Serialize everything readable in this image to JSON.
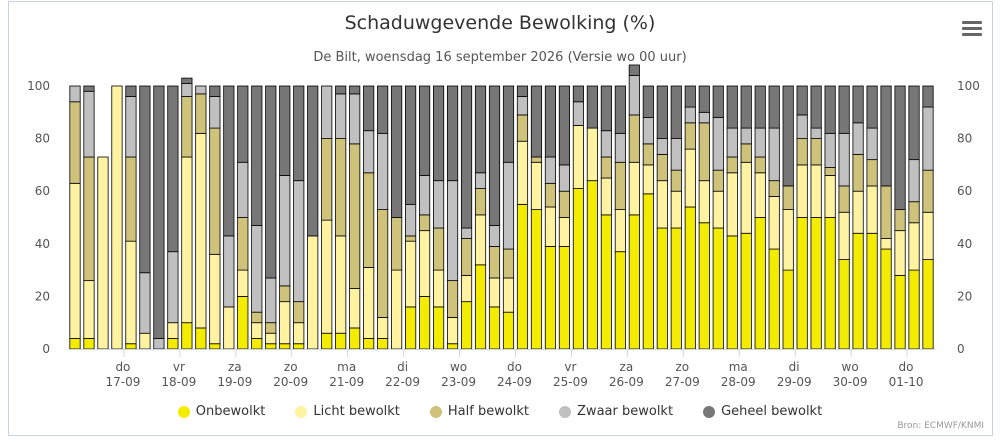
{
  "menu": {
    "icon": "hamburger-menu-icon"
  },
  "credits": "Bron: ECMWF/KNMI",
  "chart_data": {
    "type": "bar",
    "stacked": true,
    "title": "Schaduwgevende Bewolking (%)",
    "subtitle": "De Bilt, woensdag 16 september 2026 (Versie wo 00 uur)",
    "ylim": [
      0,
      100
    ],
    "yticks": [
      0,
      20,
      40,
      60,
      80,
      100
    ],
    "grid": false,
    "legend_position": "bottom",
    "day_labels": [
      {
        "day": "do",
        "date": "17-09",
        "index": 4
      },
      {
        "day": "vr",
        "date": "18-09",
        "index": 8
      },
      {
        "day": "za",
        "date": "19-09",
        "index": 12
      },
      {
        "day": "zo",
        "date": "20-09",
        "index": 16
      },
      {
        "day": "ma",
        "date": "21-09",
        "index": 20
      },
      {
        "day": "di",
        "date": "22-09",
        "index": 24
      },
      {
        "day": "wo",
        "date": "23-09",
        "index": 28
      },
      {
        "day": "do",
        "date": "24-09",
        "index": 32
      },
      {
        "day": "vr",
        "date": "25-09",
        "index": 36
      },
      {
        "day": "za",
        "date": "26-09",
        "index": 40
      },
      {
        "day": "zo",
        "date": "27-09",
        "index": 44
      },
      {
        "day": "ma",
        "date": "28-09",
        "index": 48
      },
      {
        "day": "di",
        "date": "29-09",
        "index": 52
      },
      {
        "day": "wo",
        "date": "30-09",
        "index": 56
      },
      {
        "day": "do",
        "date": "01-10",
        "index": 60
      }
    ],
    "series": [
      {
        "name": "Onbewolkt",
        "color": "#f4ec00",
        "values": [
          4,
          4,
          0,
          0,
          2,
          0,
          0,
          4,
          10,
          8,
          2,
          0,
          20,
          4,
          2,
          2,
          2,
          0,
          6,
          6,
          8,
          4,
          4,
          0,
          16,
          20,
          16,
          2,
          18,
          32,
          16,
          14,
          55,
          53,
          39,
          39,
          61,
          64,
          51,
          37,
          51,
          59,
          46,
          46,
          54,
          48,
          46,
          43,
          44,
          50,
          38,
          30,
          50,
          50,
          50,
          34,
          44,
          44,
          38,
          28,
          30,
          34
        ]
      },
      {
        "name": "Licht bewolkt",
        "color": "#fff2a0",
        "values": [
          59,
          22,
          73,
          100,
          39,
          6,
          0,
          6,
          63,
          74,
          34,
          16,
          10,
          6,
          4,
          16,
          8,
          43,
          43,
          37,
          15,
          27,
          8,
          30,
          25,
          25,
          14,
          10,
          10,
          19,
          11,
          13,
          24,
          18,
          15,
          11,
          24,
          20,
          14,
          16,
          20,
          11,
          18,
          14,
          22,
          16,
          14,
          24,
          27,
          17,
          20,
          23,
          20,
          20,
          16,
          18,
          16,
          18,
          4,
          17,
          18,
          18
        ]
      },
      {
        "name": "Half bewolkt",
        "color": "#cfc27a",
        "values": [
          31,
          47,
          0,
          0,
          32,
          0,
          0,
          0,
          23,
          15,
          48,
          0,
          20,
          4,
          4,
          6,
          8,
          0,
          31,
          37,
          55,
          36,
          41,
          20,
          2,
          6,
          16,
          14,
          14,
          10,
          12,
          11,
          10,
          2,
          9,
          10,
          0,
          0,
          8,
          18,
          18,
          8,
          10,
          8,
          10,
          22,
          8,
          6,
          7,
          6,
          6,
          9,
          10,
          10,
          3,
          10,
          14,
          10,
          20,
          8,
          8,
          16
        ]
      },
      {
        "name": "Zwaar bewolkt",
        "color": "#c0c0c0",
        "values": [
          6,
          25,
          0,
          0,
          23,
          23,
          4,
          27,
          5,
          3,
          12,
          27,
          21,
          33,
          17,
          42,
          46,
          0,
          20,
          17,
          19,
          16,
          29,
          0,
          12,
          15,
          18,
          38,
          4,
          6,
          8,
          33,
          7,
          0,
          10,
          10,
          9,
          0,
          10,
          11,
          15,
          10,
          6,
          12,
          6,
          4,
          20,
          11,
          6,
          11,
          20,
          0,
          9,
          4,
          13,
          20,
          12,
          12,
          0,
          0,
          16,
          24
        ]
      },
      {
        "name": "Geheel bewolkt",
        "color": "#777777",
        "values": [
          0,
          2,
          0,
          0,
          4,
          71,
          96,
          63,
          2,
          0,
          4,
          57,
          29,
          53,
          73,
          34,
          36,
          57,
          0,
          3,
          3,
          17,
          18,
          50,
          45,
          34,
          36,
          36,
          54,
          33,
          53,
          29,
          4,
          27,
          27,
          30,
          6,
          16,
          17,
          18,
          4,
          12,
          20,
          20,
          8,
          10,
          12,
          16,
          16,
          16,
          16,
          38,
          11,
          16,
          18,
          18,
          14,
          16,
          38,
          47,
          28,
          8
        ]
      }
    ]
  }
}
